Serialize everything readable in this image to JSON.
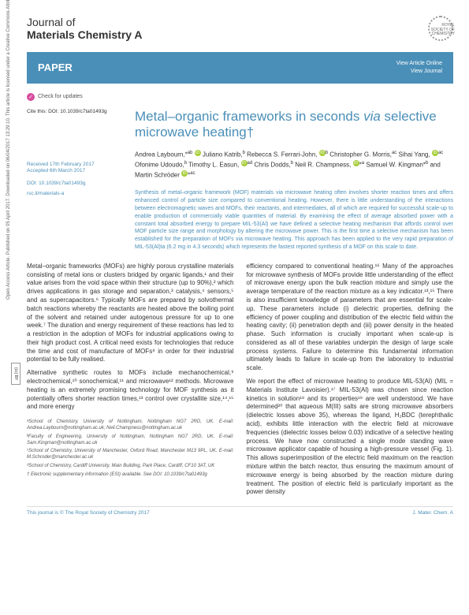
{
  "sidebar": {
    "vertical_text": "Open Access Article. Published on 05 April 2017. Downloaded on 06/04/2017 13:29:10. This article is licensed under a Creative Commons Attribution 3.0 Unported Licence.",
    "cc_label": "(cc) BY"
  },
  "header": {
    "journal_line1": "Journal of",
    "journal_line2": "Materials Chemistry A",
    "publisher": "ROYAL SOCIETY OF CHEMISTRY"
  },
  "banner": {
    "label": "PAPER",
    "link1": "View Article Online",
    "link2": "View Journal"
  },
  "check_updates": "Check for updates",
  "cite": {
    "label": "Cite this:",
    "doi": "DOI: 10.1039/c7ta01493g"
  },
  "dates": {
    "received": "Received 17th February 2017",
    "accepted": "Accepted 6th March 2017"
  },
  "doi_line": "DOI: 10.1039/c7ta01493g",
  "rsc_site": "rsc.li/materials-a",
  "title_pre": "Metal–organic frameworks in seconds ",
  "title_via": "via",
  "title_post": " selective microwave heating†",
  "authors_html": "Andrea Laybourn,*<sup>ab</sup> Juliano Katrib,<sup>b</sup> Rebecca S. Ferrari-John,<sup>b</sup> Christopher G. Morris,<sup>ac</sup> Sihai Yang,<sup>ac</sup> Ofonime Udoudo,<sup>b</sup> Timothy L. Easun,<sup>ad</sup> Chris Dodds,<sup>b</sup> Neil R. Champness,<sup>a</sup> Samuel W. Kingman*<sup>b</sup> and Martin Schröder*<sup>ac</sup>",
  "abstract": "Synthesis of metal–organic framework (MOF) materials via microwave heating often involves shorter reaction times and offers enhanced control of particle size compared to conventional heating. However, there is little understanding of the interactions between electromagnetic waves and MOFs, their reactants, and intermediates, all of which are required for successful scale-up to enable production of commercially viable quantities of material. By examining the effect of average absorbed power with a constant total absorbed energy to prepare MIL-53(Al) we have defined a selective heating mechanism that affords control over MOF particle size range and morphology by altering the microwave power. This is the first time a selective mechanism has been established for the preparation of MOFs via microwave heating. This approach has been applied to the very rapid preparation of MIL-53(Al)ta (6.2 mg in 4.3 seconds) which represents the fastest reported synthesis of a MOF on this scale to date.",
  "body": {
    "para1": "Metal–organic frameworks (MOFs) are highly porous crystalline materials consisting of metal ions or clusters bridged by organic ligands,¹ and their value arises from the void space within their structure (up to 90%),² which drives applications in gas storage and separation,³ catalysis,⁴ sensors,⁵ and as supercapacitors.⁶ Typically MOFs are prepared by solvothermal batch reactions whereby the reactants are heated above the boiling point of the solvent and retained under autogenous pressure for up to one week.⁷ The duration and energy requirement of these reactions has led to a restriction in the adoption of MOFs for industrial applications owing to their high product cost. A critical need exists for technologies that reduce the time and cost of manufacture of MOFs⁸ in order for their industrial potential to be fully realised.",
    "para2": "Alternative synthetic routes to MOFs include mechanochemical,⁹ electrochemical,¹⁰ sonochemical,¹¹ and microwave¹² methods. Microwave heating is an extremely promising technology for MOF synthesis as it potentially offers shorter reaction times,¹³ control over crystallite size,¹⁴,¹⁵ and more energy",
    "para3": "efficiency compared to conventional heating.¹⁶ Many of the approaches for microwave synthesis of MOFs provide little understanding of the effect of microwave energy upon the bulk reaction mixture and simply use the average temperature of the reaction mixture as a key indicator.¹³,¹⁵ There is also insufficient knowledge of parameters that are essential for scale-up. These parameters include (i) dielectric properties, defining the efficiency of power coupling and distribution of the electric field within the heating cavity; (ii) penetration depth and (iii) power density in the heated phase. Such information is crucially important when scale-up is considered as all of these variables underpin the design of large scale process systems. Failure to determine this fundamental information ultimately leads to failure in scale-up from the laboratory to industrial scale.",
    "para4": "We report the effect of microwave heating to produce MIL-53(Al) (MIL = Materials Institute Lavoisier).¹⁷ MIL-53(Al) was chosen since reaction kinetics in solution¹⁸ and its properties¹⁹ are well understood. We have determined²⁰ that aqueous M(III) salts are strong microwave absorbers (dielectric losses above 35), whereas the ligand, H₂BDC (terephthalic acid), exhibits little interaction with the electric field at microwave frequencies (dielectric losses below 0.03) indicative of a selective heating process. We have now constructed a single mode standing wave microwave applicator capable of housing a high-pressure vessel (Fig. 1). This allows superimposition of the electric field maximum on the reaction mixture within the batch reactor, thus ensuring the maximum amount of microwave energy is being absorbed by the reaction mixture during treatment. The position of electric field is particularly important as the power density"
  },
  "affiliations": {
    "a": "ᵃSchool of Chemistry, University of Nottingham, Nottingham NG7 2RD, UK. E-mail: Andrea.Laybourn@nottingham.ac.uk; Neil.Champness@nottingham.ac.uk",
    "b": "ᵇFaculty of Engineering, University of Nottingham, Nottingham NG7 2RD, UK. E-mail: Sam.Kingman@nottingham.ac.uk",
    "c": "ᶜSchool of Chemistry, University of Manchester, Oxford Road, Manchester M13 9PL, UK. E-mail: M.Schroder@manchester.ac.uk",
    "d": "ᵈSchool of Chemistry, Cardiff University, Main Building, Park Place, Cardiff, CF10 3AT, UK",
    "esi": "† Electronic supplementary information (ESI) available. See DOI: 10.1039/c7ta01493g"
  },
  "footer": {
    "left": "This journal is © The Royal Society of Chemistry 2017",
    "right": "J. Mater. Chem. A"
  }
}
